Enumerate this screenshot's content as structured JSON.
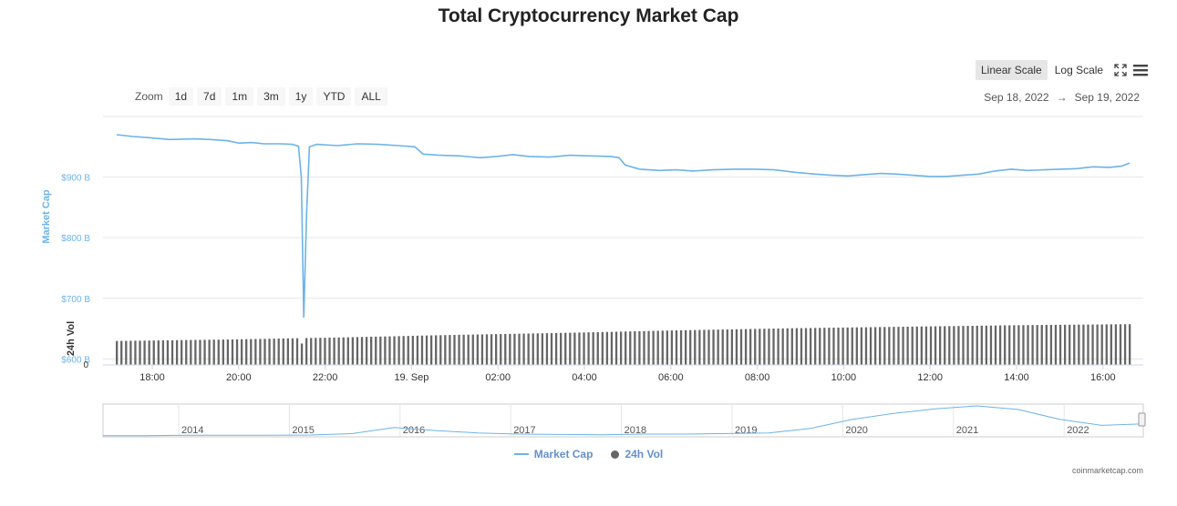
{
  "header": {
    "title": "Total Cryptocurrency Market Cap"
  },
  "scale": {
    "linear_label": "Linear Scale",
    "log_label": "Log Scale",
    "active": "linear"
  },
  "icons": {
    "fullscreen": "fullscreen-icon",
    "menu": "hamburger-menu-icon"
  },
  "zoom": {
    "label": "Zoom",
    "options": [
      "1d",
      "7d",
      "1m",
      "3m",
      "1y",
      "YTD",
      "ALL"
    ],
    "active": "1d"
  },
  "range": {
    "from": "Sep 18, 2022",
    "arrow": "→",
    "to": "Sep 19, 2022"
  },
  "legend": {
    "market_cap": "Market Cap",
    "volume": "24h Vol"
  },
  "credit": "coinmarketcap.com",
  "colors": {
    "market_cap": "#6db3e7",
    "volume": "#666666"
  },
  "chart_data": {
    "type": "line",
    "title": "Total Cryptocurrency Market Cap",
    "x_ticks": [
      "18:00",
      "20:00",
      "22:00",
      "19. Sep",
      "02:00",
      "04:00",
      "06:00",
      "08:00",
      "10:00",
      "12:00",
      "14:00",
      "16:00"
    ],
    "y_axis": {
      "label": "Market Cap",
      "ticks": [
        "$900 B",
        "$800 B",
        "$700 B",
        "$600 B"
      ],
      "tick_values": [
        900,
        800,
        700,
        600
      ],
      "range": [
        590,
        1000
      ],
      "unit": "B USD"
    },
    "volume_axis": {
      "label": "24h Vol",
      "ticks": [
        "0"
      ]
    },
    "grid": true,
    "series": [
      {
        "name": "Market Cap",
        "points": [
          [
            16.9,
            970
          ],
          [
            17.3,
            967
          ],
          [
            17.7,
            965
          ],
          [
            18.2,
            962
          ],
          [
            18.8,
            963
          ],
          [
            19.2,
            962
          ],
          [
            19.6,
            960
          ],
          [
            19.9,
            956
          ],
          [
            20.2,
            957
          ],
          [
            20.5,
            955
          ],
          [
            20.9,
            955
          ],
          [
            21.2,
            954
          ],
          [
            21.35,
            951
          ],
          [
            21.42,
            900
          ],
          [
            21.48,
            668
          ],
          [
            21.55,
            840
          ],
          [
            21.62,
            950
          ],
          [
            21.8,
            954
          ],
          [
            22.3,
            952
          ],
          [
            22.8,
            955
          ],
          [
            23.3,
            954
          ],
          [
            23.8,
            952
          ],
          [
            24.2,
            950
          ],
          [
            24.4,
            938
          ],
          [
            24.8,
            936
          ],
          [
            25.3,
            935
          ],
          [
            25.8,
            932
          ],
          [
            26.2,
            934
          ],
          [
            26.6,
            937
          ],
          [
            27.0,
            934
          ],
          [
            27.5,
            933
          ],
          [
            28.0,
            936
          ],
          [
            28.5,
            935
          ],
          [
            29.0,
            934
          ],
          [
            29.2,
            932
          ],
          [
            29.35,
            920
          ],
          [
            29.7,
            913
          ],
          [
            30.2,
            911
          ],
          [
            30.6,
            912
          ],
          [
            31.0,
            910
          ],
          [
            31.5,
            912
          ],
          [
            32.0,
            913
          ],
          [
            32.5,
            913
          ],
          [
            33.0,
            912
          ],
          [
            33.5,
            908
          ],
          [
            34.0,
            905
          ],
          [
            34.4,
            903
          ],
          [
            34.8,
            902
          ],
          [
            35.2,
            904
          ],
          [
            35.6,
            906
          ],
          [
            36.0,
            905
          ],
          [
            36.4,
            903
          ],
          [
            36.8,
            901
          ],
          [
            37.2,
            901
          ],
          [
            37.6,
            903
          ],
          [
            38.0,
            905
          ],
          [
            38.4,
            910
          ],
          [
            38.8,
            913
          ],
          [
            39.2,
            911
          ],
          [
            39.6,
            912
          ],
          [
            40.0,
            913
          ],
          [
            40.4,
            914
          ],
          [
            40.8,
            917
          ],
          [
            41.2,
            916
          ],
          [
            41.5,
            918
          ],
          [
            41.7,
            923
          ]
        ]
      },
      {
        "name": "24h Vol",
        "x_start": 16.9,
        "x_end": 41.7,
        "bar_count": 220,
        "relative_values": [
          0.47,
          0.5,
          0.54,
          0.59,
          0.63,
          0.68,
          0.72,
          0.75,
          0.78,
          0.8
        ]
      }
    ],
    "navigator": {
      "x_ticks": [
        "2014",
        "2015",
        "2016",
        "2017",
        "2018",
        "2019",
        "2020",
        "2021",
        "2022"
      ],
      "relative_values": [
        0.01,
        0.01,
        0.02,
        0.02,
        0.02,
        0.03,
        0.08,
        0.28,
        0.18,
        0.1,
        0.06,
        0.05,
        0.04,
        0.06,
        0.06,
        0.08,
        0.1,
        0.25,
        0.55,
        0.75,
        0.9,
        1.0,
        0.88,
        0.55,
        0.35,
        0.4
      ]
    }
  }
}
